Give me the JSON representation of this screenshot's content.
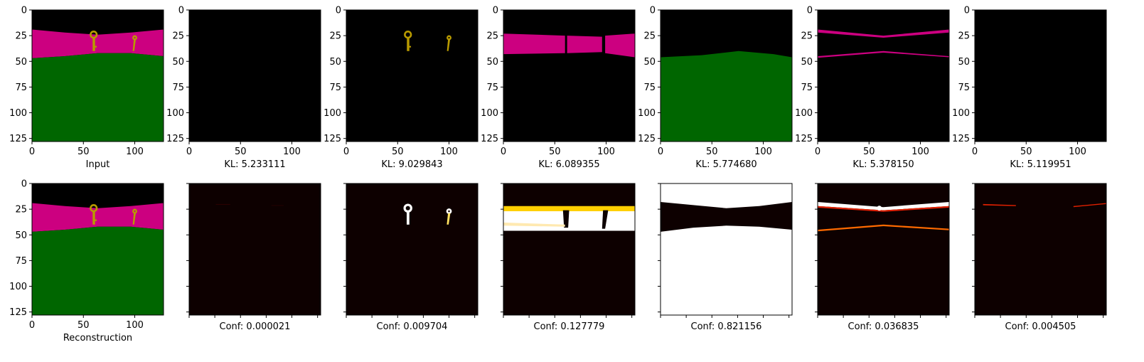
{
  "chart_data": [
    {
      "type": "image",
      "row": 0,
      "col": 0,
      "caption": "Input",
      "content": "input-scene",
      "xticks": [
        "0",
        "50",
        "100"
      ],
      "yticks": [
        "0",
        "25",
        "50",
        "75",
        "100",
        "125"
      ],
      "xlim": [
        0,
        128
      ],
      "ylim": [
        128,
        0
      ]
    },
    {
      "type": "image",
      "row": 0,
      "col": 1,
      "caption": "KL: 5.233111",
      "content": "empty",
      "xticks": [
        "0",
        "50",
        "100"
      ],
      "yticks": [
        "0",
        "25",
        "50",
        "75",
        "100",
        "125"
      ],
      "xlim": [
        0,
        128
      ],
      "ylim": [
        128,
        0
      ]
    },
    {
      "type": "image",
      "row": 0,
      "col": 2,
      "caption": "KL: 9.029843",
      "content": "keys",
      "xticks": [
        "0",
        "50",
        "100"
      ],
      "yticks": [
        "0",
        "25",
        "50",
        "75",
        "100",
        "125"
      ],
      "xlim": [
        0,
        128
      ],
      "ylim": [
        128,
        0
      ]
    },
    {
      "type": "image",
      "row": 0,
      "col": 3,
      "caption": "KL: 6.089355",
      "content": "magenta-band",
      "xticks": [
        "0",
        "50",
        "100"
      ],
      "yticks": [
        "0",
        "25",
        "50",
        "75",
        "100",
        "125"
      ],
      "xlim": [
        0,
        128
      ],
      "ylim": [
        128,
        0
      ]
    },
    {
      "type": "image",
      "row": 0,
      "col": 4,
      "caption": "KL: 5.774680",
      "content": "green-ground",
      "xticks": [
        "0",
        "50",
        "100"
      ],
      "yticks": [
        "0",
        "25",
        "50",
        "75",
        "100",
        "125"
      ],
      "xlim": [
        0,
        128
      ],
      "ylim": [
        128,
        0
      ]
    },
    {
      "type": "image",
      "row": 0,
      "col": 5,
      "caption": "KL: 5.378150",
      "content": "magenta-edges",
      "xticks": [
        "0",
        "50",
        "100"
      ],
      "yticks": [
        "0",
        "25",
        "50",
        "75",
        "100",
        "125"
      ],
      "xlim": [
        0,
        128
      ],
      "ylim": [
        128,
        0
      ]
    },
    {
      "type": "image",
      "row": 0,
      "col": 6,
      "caption": "KL: 5.119951",
      "content": "empty",
      "xticks": [
        "0",
        "50",
        "100"
      ],
      "yticks": [
        "0",
        "25",
        "50",
        "75",
        "100",
        "125"
      ],
      "xlim": [
        0,
        128
      ],
      "ylim": [
        128,
        0
      ]
    },
    {
      "type": "image",
      "row": 1,
      "col": 0,
      "caption": "Reconstruction",
      "content": "input-scene",
      "xticks": [
        "0",
        "50",
        "100"
      ],
      "yticks": [
        "0",
        "25",
        "50",
        "75",
        "100",
        "125"
      ],
      "xlim": [
        0,
        128
      ],
      "ylim": [
        128,
        0
      ]
    },
    {
      "type": "heatmap",
      "row": 1,
      "col": 1,
      "caption": "Conf: 0.000021",
      "content": "mask-faint",
      "colormap": "hot",
      "value": 2.1e-05
    },
    {
      "type": "heatmap",
      "row": 1,
      "col": 2,
      "caption": "Conf: 0.009704",
      "content": "mask-keys",
      "colormap": "hot",
      "value": 0.009704
    },
    {
      "type": "heatmap",
      "row": 1,
      "col": 3,
      "caption": "Conf: 0.127779",
      "content": "mask-band",
      "colormap": "hot",
      "value": 0.127779
    },
    {
      "type": "heatmap",
      "row": 1,
      "col": 4,
      "caption": "Conf: 0.821156",
      "content": "mask-ground",
      "colormap": "hot",
      "value": 0.821156
    },
    {
      "type": "heatmap",
      "row": 1,
      "col": 5,
      "caption": "Conf: 0.036835",
      "content": "mask-edges",
      "colormap": "hot",
      "value": 0.036835
    },
    {
      "type": "heatmap",
      "row": 1,
      "col": 6,
      "caption": "Conf: 0.004505",
      "content": "mask-sparse",
      "colormap": "hot",
      "value": 0.004505
    }
  ],
  "colors": {
    "background": "#000000",
    "magenta": "#cc0080",
    "green": "#006600",
    "key": "#b89a00",
    "hot_dark": "#0d0000",
    "hot_white": "#ffffff",
    "hot_yellow": "#ffd000",
    "hot_red": "#e02000"
  }
}
